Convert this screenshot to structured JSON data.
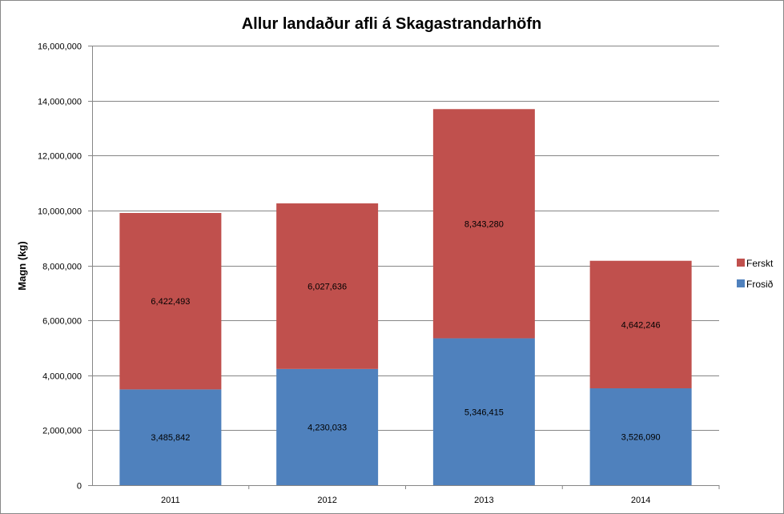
{
  "chart_data": {
    "type": "bar",
    "stacked": true,
    "title": "Allur landaður afli á Skagastrandarhöfn",
    "xlabel": "",
    "ylabel": "Magn (kg)",
    "ylim": [
      0,
      16000000
    ],
    "yticks": [
      0,
      2000000,
      4000000,
      6000000,
      8000000,
      10000000,
      12000000,
      14000000,
      16000000
    ],
    "ytick_labels": [
      "0",
      "2,000,000",
      "4,000,000",
      "6,000,000",
      "8,000,000",
      "10,000,000",
      "12,000,000",
      "14,000,000",
      "16,000,000"
    ],
    "categories": [
      "2011",
      "2012",
      "2013",
      "2014"
    ],
    "grid": true,
    "legend_position": "right",
    "series": [
      {
        "name": "Frosið",
        "color": "#4F81BD",
        "values": [
          3485842,
          4230033,
          5346415,
          3526090
        ],
        "labels": [
          "3,485,842",
          "4,230,033",
          "5,346,415",
          "3,526,090"
        ]
      },
      {
        "name": "Ferskt",
        "color": "#C0504D",
        "values": [
          6422493,
          6027636,
          8343280,
          4642246
        ],
        "labels": [
          "6,422,493",
          "6,027,636",
          "8,343,280",
          "4,642,246"
        ]
      }
    ],
    "legend_order": [
      1,
      0
    ]
  }
}
